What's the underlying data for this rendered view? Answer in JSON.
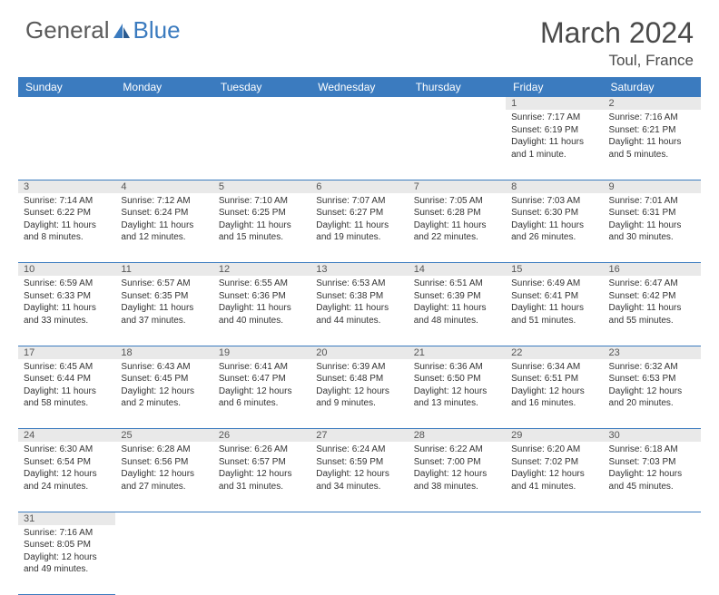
{
  "logo": {
    "text1": "General",
    "text2": "Blue"
  },
  "title": "March 2024",
  "location": "Toul, France",
  "colors": {
    "header_bg": "#3b7bbf",
    "header_text": "#ffffff",
    "daynum_bg": "#e9e9e9",
    "row_border": "#3b7bbf",
    "text": "#333333"
  },
  "weekdays": [
    "Sunday",
    "Monday",
    "Tuesday",
    "Wednesday",
    "Thursday",
    "Friday",
    "Saturday"
  ],
  "weeks": [
    [
      null,
      null,
      null,
      null,
      null,
      {
        "d": "1",
        "sr": "Sunrise: 7:17 AM",
        "ss": "Sunset: 6:19 PM",
        "dl": "Daylight: 11 hours and 1 minute."
      },
      {
        "d": "2",
        "sr": "Sunrise: 7:16 AM",
        "ss": "Sunset: 6:21 PM",
        "dl": "Daylight: 11 hours and 5 minutes."
      }
    ],
    [
      {
        "d": "3",
        "sr": "Sunrise: 7:14 AM",
        "ss": "Sunset: 6:22 PM",
        "dl": "Daylight: 11 hours and 8 minutes."
      },
      {
        "d": "4",
        "sr": "Sunrise: 7:12 AM",
        "ss": "Sunset: 6:24 PM",
        "dl": "Daylight: 11 hours and 12 minutes."
      },
      {
        "d": "5",
        "sr": "Sunrise: 7:10 AM",
        "ss": "Sunset: 6:25 PM",
        "dl": "Daylight: 11 hours and 15 minutes."
      },
      {
        "d": "6",
        "sr": "Sunrise: 7:07 AM",
        "ss": "Sunset: 6:27 PM",
        "dl": "Daylight: 11 hours and 19 minutes."
      },
      {
        "d": "7",
        "sr": "Sunrise: 7:05 AM",
        "ss": "Sunset: 6:28 PM",
        "dl": "Daylight: 11 hours and 22 minutes."
      },
      {
        "d": "8",
        "sr": "Sunrise: 7:03 AM",
        "ss": "Sunset: 6:30 PM",
        "dl": "Daylight: 11 hours and 26 minutes."
      },
      {
        "d": "9",
        "sr": "Sunrise: 7:01 AM",
        "ss": "Sunset: 6:31 PM",
        "dl": "Daylight: 11 hours and 30 minutes."
      }
    ],
    [
      {
        "d": "10",
        "sr": "Sunrise: 6:59 AM",
        "ss": "Sunset: 6:33 PM",
        "dl": "Daylight: 11 hours and 33 minutes."
      },
      {
        "d": "11",
        "sr": "Sunrise: 6:57 AM",
        "ss": "Sunset: 6:35 PM",
        "dl": "Daylight: 11 hours and 37 minutes."
      },
      {
        "d": "12",
        "sr": "Sunrise: 6:55 AM",
        "ss": "Sunset: 6:36 PM",
        "dl": "Daylight: 11 hours and 40 minutes."
      },
      {
        "d": "13",
        "sr": "Sunrise: 6:53 AM",
        "ss": "Sunset: 6:38 PM",
        "dl": "Daylight: 11 hours and 44 minutes."
      },
      {
        "d": "14",
        "sr": "Sunrise: 6:51 AM",
        "ss": "Sunset: 6:39 PM",
        "dl": "Daylight: 11 hours and 48 minutes."
      },
      {
        "d": "15",
        "sr": "Sunrise: 6:49 AM",
        "ss": "Sunset: 6:41 PM",
        "dl": "Daylight: 11 hours and 51 minutes."
      },
      {
        "d": "16",
        "sr": "Sunrise: 6:47 AM",
        "ss": "Sunset: 6:42 PM",
        "dl": "Daylight: 11 hours and 55 minutes."
      }
    ],
    [
      {
        "d": "17",
        "sr": "Sunrise: 6:45 AM",
        "ss": "Sunset: 6:44 PM",
        "dl": "Daylight: 11 hours and 58 minutes."
      },
      {
        "d": "18",
        "sr": "Sunrise: 6:43 AM",
        "ss": "Sunset: 6:45 PM",
        "dl": "Daylight: 12 hours and 2 minutes."
      },
      {
        "d": "19",
        "sr": "Sunrise: 6:41 AM",
        "ss": "Sunset: 6:47 PM",
        "dl": "Daylight: 12 hours and 6 minutes."
      },
      {
        "d": "20",
        "sr": "Sunrise: 6:39 AM",
        "ss": "Sunset: 6:48 PM",
        "dl": "Daylight: 12 hours and 9 minutes."
      },
      {
        "d": "21",
        "sr": "Sunrise: 6:36 AM",
        "ss": "Sunset: 6:50 PM",
        "dl": "Daylight: 12 hours and 13 minutes."
      },
      {
        "d": "22",
        "sr": "Sunrise: 6:34 AM",
        "ss": "Sunset: 6:51 PM",
        "dl": "Daylight: 12 hours and 16 minutes."
      },
      {
        "d": "23",
        "sr": "Sunrise: 6:32 AM",
        "ss": "Sunset: 6:53 PM",
        "dl": "Daylight: 12 hours and 20 minutes."
      }
    ],
    [
      {
        "d": "24",
        "sr": "Sunrise: 6:30 AM",
        "ss": "Sunset: 6:54 PM",
        "dl": "Daylight: 12 hours and 24 minutes."
      },
      {
        "d": "25",
        "sr": "Sunrise: 6:28 AM",
        "ss": "Sunset: 6:56 PM",
        "dl": "Daylight: 12 hours and 27 minutes."
      },
      {
        "d": "26",
        "sr": "Sunrise: 6:26 AM",
        "ss": "Sunset: 6:57 PM",
        "dl": "Daylight: 12 hours and 31 minutes."
      },
      {
        "d": "27",
        "sr": "Sunrise: 6:24 AM",
        "ss": "Sunset: 6:59 PM",
        "dl": "Daylight: 12 hours and 34 minutes."
      },
      {
        "d": "28",
        "sr": "Sunrise: 6:22 AM",
        "ss": "Sunset: 7:00 PM",
        "dl": "Daylight: 12 hours and 38 minutes."
      },
      {
        "d": "29",
        "sr": "Sunrise: 6:20 AM",
        "ss": "Sunset: 7:02 PM",
        "dl": "Daylight: 12 hours and 41 minutes."
      },
      {
        "d": "30",
        "sr": "Sunrise: 6:18 AM",
        "ss": "Sunset: 7:03 PM",
        "dl": "Daylight: 12 hours and 45 minutes."
      }
    ],
    [
      {
        "d": "31",
        "sr": "Sunrise: 7:16 AM",
        "ss": "Sunset: 8:05 PM",
        "dl": "Daylight: 12 hours and 49 minutes."
      },
      null,
      null,
      null,
      null,
      null,
      null
    ]
  ]
}
